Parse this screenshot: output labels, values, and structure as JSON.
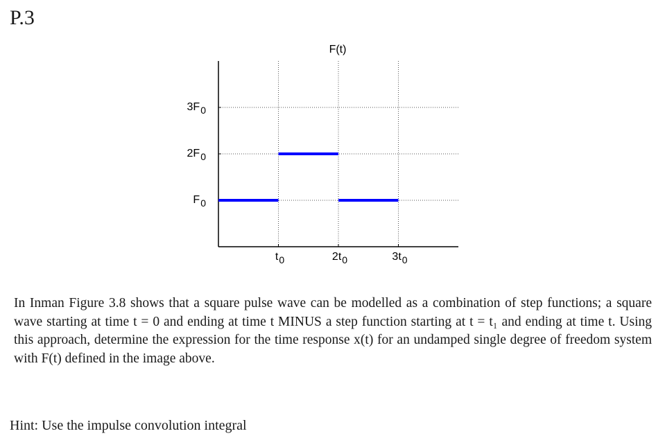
{
  "problem": {
    "label": "P.3"
  },
  "chart_data": {
    "type": "line",
    "title": "F(t)",
    "xlabel": "",
    "ylabel": "",
    "x_ticks": [
      {
        "value": 1,
        "main": "t",
        "sub": "0"
      },
      {
        "value": 2,
        "main": "2t",
        "sub": "0"
      },
      {
        "value": 3,
        "main": "3t",
        "sub": "0"
      }
    ],
    "y_ticks": [
      {
        "value": 1,
        "main": "F",
        "sub": "0"
      },
      {
        "value": 2,
        "main": "2F",
        "sub": "0"
      },
      {
        "value": 3,
        "main": "3F",
        "sub": "0"
      }
    ],
    "xlim": [
      0,
      4
    ],
    "ylim": [
      0,
      4
    ],
    "grid": true,
    "grid_style": "dotted",
    "series": [
      {
        "color": "#0000ff",
        "segments": [
          {
            "x_start": 0,
            "x_end": 1,
            "y": 1
          },
          {
            "x_start": 1,
            "x_end": 2,
            "y": 2
          },
          {
            "x_start": 2,
            "x_end": 3,
            "y": 1
          }
        ]
      }
    ]
  },
  "description": {
    "paragraph": "In Inman Figure 3.8 shows that a square pulse wave can be modelled as a combination of step functions; a square wave starting at time t = 0 and ending at time t MINUS a step function starting at t = t₁ and ending at time t. Using this approach, determine the expression for the time response x(t) for an undamped single degree of freedom system with F(t) defined in the image above."
  },
  "hint": {
    "text": "Hint: Use the impulse convolution integral"
  }
}
